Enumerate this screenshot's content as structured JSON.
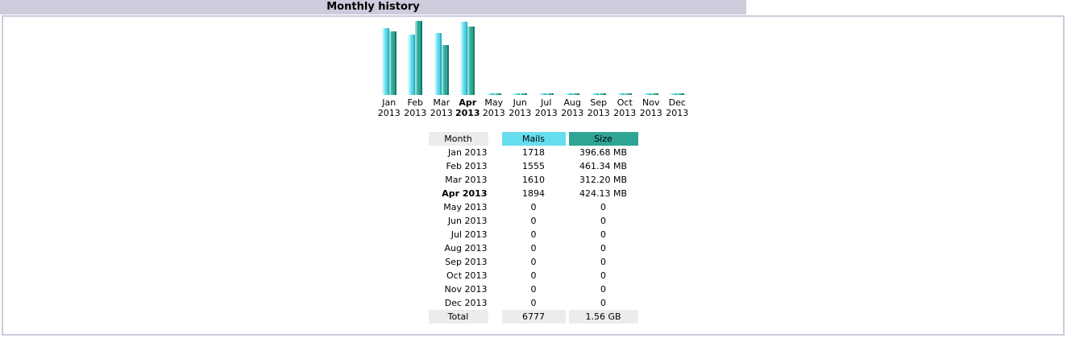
{
  "title": "Monthly history",
  "colors": {
    "title_bar_bg": "#ccccdd",
    "frame_border": "#ccccdd",
    "mails_accent": "#66ddee",
    "size_accent": "#2ea495",
    "neutral_header_bg": "#ececec"
  },
  "chart_data": {
    "type": "bar",
    "categories": [
      "Jan 2013",
      "Feb 2013",
      "Mar 2013",
      "Apr 2013",
      "May 2013",
      "Jun 2013",
      "Jul 2013",
      "Aug 2013",
      "Sep 2013",
      "Oct 2013",
      "Nov 2013",
      "Dec 2013"
    ],
    "series": [
      {
        "name": "Mails",
        "color": "#66ddee",
        "values": [
          1718,
          1555,
          1610,
          1894,
          0,
          0,
          0,
          0,
          0,
          0,
          0,
          0
        ]
      },
      {
        "name": "Size (MB)",
        "color": "#2ea495",
        "values": [
          396.68,
          461.34,
          312.2,
          424.13,
          0,
          0,
          0,
          0,
          0,
          0,
          0,
          0
        ]
      }
    ],
    "highlight_category": "Apr 2013",
    "title": "Monthly history",
    "xlabel": "",
    "ylabel": "",
    "grid": false,
    "legend_position": "none",
    "note": "bars scaled per-series to max value; zero months drawn as flat stubs"
  },
  "table": {
    "columns": {
      "month": "Month",
      "mails": "Mails",
      "size": "Size"
    },
    "rows": [
      {
        "month": "Jan 2013",
        "mails": "1718",
        "size": "396.68 MB",
        "bold": false
      },
      {
        "month": "Feb 2013",
        "mails": "1555",
        "size": "461.34 MB",
        "bold": false
      },
      {
        "month": "Mar 2013",
        "mails": "1610",
        "size": "312.20 MB",
        "bold": false
      },
      {
        "month": "Apr 2013",
        "mails": "1894",
        "size": "424.13 MB",
        "bold": true
      },
      {
        "month": "May 2013",
        "mails": "0",
        "size": "0",
        "bold": false
      },
      {
        "month": "Jun 2013",
        "mails": "0",
        "size": "0",
        "bold": false
      },
      {
        "month": "Jul 2013",
        "mails": "0",
        "size": "0",
        "bold": false
      },
      {
        "month": "Aug 2013",
        "mails": "0",
        "size": "0",
        "bold": false
      },
      {
        "month": "Sep 2013",
        "mails": "0",
        "size": "0",
        "bold": false
      },
      {
        "month": "Oct 2013",
        "mails": "0",
        "size": "0",
        "bold": false
      },
      {
        "month": "Nov 2013",
        "mails": "0",
        "size": "0",
        "bold": false
      },
      {
        "month": "Dec 2013",
        "mails": "0",
        "size": "0",
        "bold": false
      }
    ],
    "total": {
      "label": "Total",
      "mails": "6777",
      "size": "1.56 GB"
    }
  }
}
